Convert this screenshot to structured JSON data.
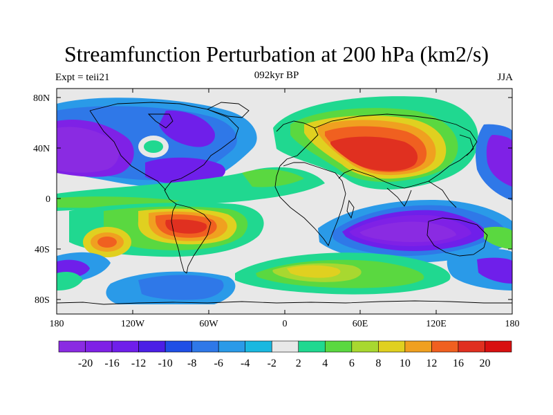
{
  "title": "Streamfunction Perturbation at 200 hPa (km2/s)",
  "left_label": "Expt = teii21",
  "center_label": "092kyr BP",
  "right_label": "JJA",
  "lat_ticks": [
    "80N",
    "40N",
    "0",
    "40S",
    "80S"
  ],
  "lon_ticks": [
    "180",
    "120W",
    "60W",
    "0",
    "60E",
    "120E",
    "180"
  ],
  "colorbar": {
    "labels": [
      "-20",
      "-16",
      "-12",
      "-10",
      "-8",
      "-6",
      "-4",
      "-2",
      "2",
      "4",
      "6",
      "8",
      "10",
      "12",
      "16",
      "20"
    ],
    "colors": [
      "#8a2be2",
      "#7f21e6",
      "#6f1fea",
      "#4b1fe6",
      "#1f4fe6",
      "#2f78e8",
      "#2a9ae8",
      "#1ab8e0",
      "#e8e8e8",
      "#20d890",
      "#5ad840",
      "#a8d830",
      "#e0d020",
      "#f0a020",
      "#f06020",
      "#e03020",
      "#d81010"
    ]
  },
  "legend_note": "",
  "map_description_colors": {
    "ocean_neutral": "#e8e8e8",
    "coast": "#000000"
  }
}
